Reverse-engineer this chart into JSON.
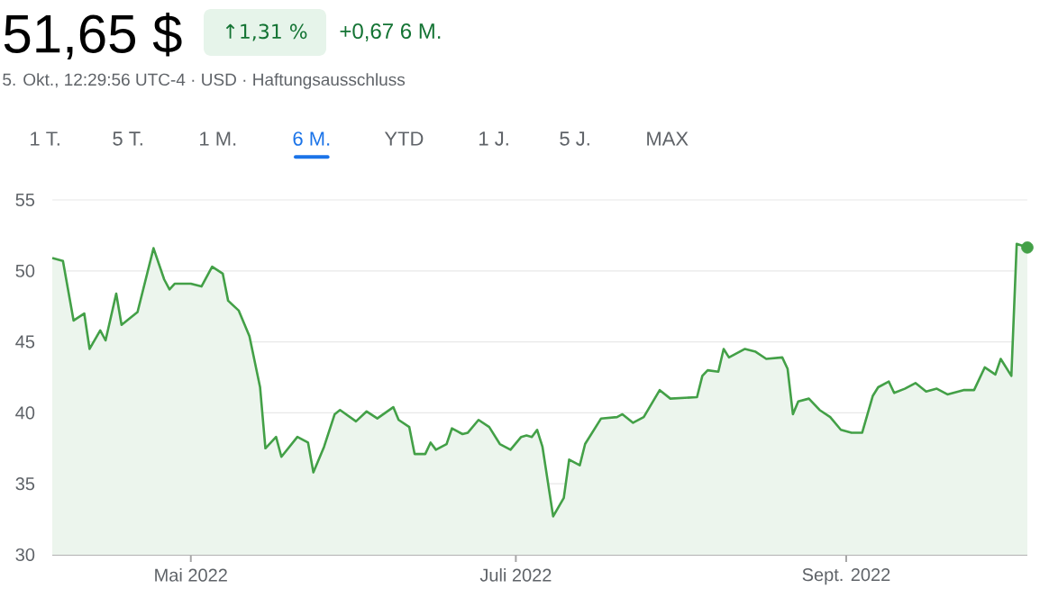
{
  "chart_data": {
    "type": "area",
    "title": "51,65 $",
    "subtitle": "5. Okt., 12:29:56 UTC-4 · USD · Haftungsausschluss",
    "annotations": [
      "↑1,31 %",
      "+0,67 6 M.",
      "1 T.",
      "5 T.",
      "1 M.",
      "6 M.",
      "YTD",
      "1 J.",
      "5 J.",
      "MAX"
    ],
    "xlim": [
      "2022-04-05",
      "2022-10-05"
    ],
    "xticks": [
      {
        "value": "2022-05-01",
        "label": "Mai 2022"
      },
      {
        "value": "2022-07-01",
        "label": "Juli 2022"
      },
      {
        "value": "2022-09-01",
        "label": "Sept. 2022"
      }
    ],
    "ylim": [
      30,
      55
    ],
    "yticks": [
      30,
      35,
      40,
      45,
      50,
      55
    ],
    "grid": "y",
    "series": [
      {
        "color": "#43a047",
        "x": [
          "2022-04-05",
          "2022-04-07",
          "2022-04-09",
          "2022-04-11",
          "2022-04-12",
          "2022-04-14",
          "2022-04-15",
          "2022-04-17",
          "2022-04-18",
          "2022-04-21",
          "2022-04-24",
          "2022-04-26",
          "2022-04-27",
          "2022-04-28",
          "2022-05-01",
          "2022-05-03",
          "2022-05-05",
          "2022-05-07",
          "2022-05-08",
          "2022-05-10",
          "2022-05-12",
          "2022-05-14",
          "2022-05-15",
          "2022-05-17",
          "2022-05-18",
          "2022-05-21",
          "2022-05-23",
          "2022-05-24",
          "2022-05-26",
          "2022-05-28",
          "2022-05-29",
          "2022-06-01",
          "2022-06-03",
          "2022-06-05",
          "2022-06-08",
          "2022-06-09",
          "2022-06-11",
          "2022-06-12",
          "2022-06-14",
          "2022-06-15",
          "2022-06-16",
          "2022-06-18",
          "2022-06-19",
          "2022-06-21",
          "2022-06-22",
          "2022-06-24",
          "2022-06-26",
          "2022-06-28",
          "2022-06-30",
          "2022-07-02",
          "2022-07-03",
          "2022-07-04",
          "2022-07-05",
          "2022-07-06",
          "2022-07-08",
          "2022-07-10",
          "2022-07-11",
          "2022-07-13",
          "2022-07-14",
          "2022-07-15",
          "2022-07-17",
          "2022-07-20",
          "2022-07-21",
          "2022-07-23",
          "2022-07-25",
          "2022-07-28",
          "2022-07-30",
          "2022-08-04",
          "2022-08-05",
          "2022-08-06",
          "2022-08-08",
          "2022-08-09",
          "2022-08-10",
          "2022-08-13",
          "2022-08-15",
          "2022-08-17",
          "2022-08-20",
          "2022-08-21",
          "2022-08-22",
          "2022-08-23",
          "2022-08-25",
          "2022-08-27",
          "2022-08-29",
          "2022-08-31",
          "2022-09-02",
          "2022-09-04",
          "2022-09-06",
          "2022-09-07",
          "2022-09-09",
          "2022-09-10",
          "2022-09-12",
          "2022-09-14",
          "2022-09-16",
          "2022-09-18",
          "2022-09-20",
          "2022-09-23",
          "2022-09-25",
          "2022-09-27",
          "2022-09-29",
          "2022-09-30",
          "2022-10-02",
          "2022-10-03",
          "2022-10-05"
        ],
        "values": [
          50.9,
          50.7,
          46.5,
          47.0,
          44.5,
          45.8,
          45.1,
          48.4,
          46.2,
          47.1,
          51.6,
          49.4,
          48.7,
          49.1,
          49.1,
          48.9,
          50.3,
          49.8,
          47.9,
          47.2,
          45.4,
          41.8,
          37.5,
          38.3,
          36.9,
          38.3,
          37.9,
          35.8,
          37.6,
          39.9,
          40.2,
          39.4,
          40.1,
          39.6,
          40.4,
          39.5,
          39.0,
          37.1,
          37.1,
          37.9,
          37.4,
          37.8,
          38.9,
          38.5,
          38.6,
          39.5,
          39.0,
          37.8,
          37.4,
          38.3,
          38.4,
          38.3,
          38.8,
          37.6,
          32.7,
          34.0,
          36.7,
          36.3,
          37.8,
          38.4,
          39.6,
          39.7,
          39.9,
          39.3,
          39.7,
          41.6,
          41.0,
          41.1,
          42.6,
          43.0,
          42.9,
          44.5,
          43.9,
          44.5,
          44.3,
          43.8,
          43.9,
          43.1,
          39.9,
          40.8,
          41.0,
          40.2,
          39.7,
          38.8,
          38.6,
          38.6,
          41.2,
          41.8,
          42.2,
          41.4,
          41.7,
          42.1,
          41.5,
          41.7,
          41.3,
          41.6,
          41.6,
          43.2,
          42.7,
          43.8,
          42.6,
          51.9,
          51.65
        ]
      },
      {
        "type": "scatter",
        "color": "#43a047",
        "marker": "circle",
        "x": [
          "2022-10-05"
        ],
        "values": [
          51.65
        ]
      }
    ]
  }
}
